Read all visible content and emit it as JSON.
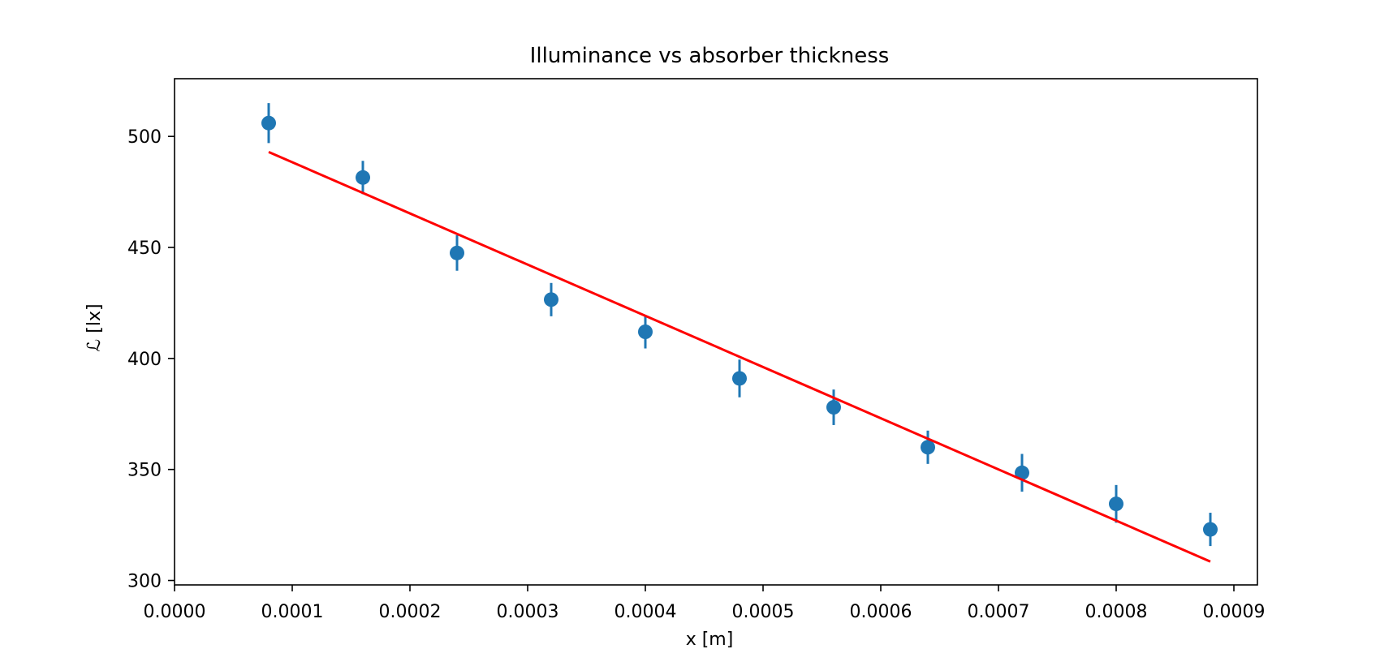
{
  "chart_data": {
    "type": "scatter",
    "title": "Illuminance vs absorber thickness",
    "xlabel": "x [m]",
    "ylabel": "ℒ [lx]",
    "xlim": [
      0.0,
      0.00092
    ],
    "ylim": [
      298,
      526
    ],
    "xticks": [
      0.0,
      0.0001,
      0.0002,
      0.0003,
      0.0004,
      0.0005,
      0.0006,
      0.0007,
      0.0008,
      0.0009
    ],
    "xtick_labels": [
      "0.0000",
      "0.0001",
      "0.0002",
      "0.0003",
      "0.0004",
      "0.0005",
      "0.0006",
      "0.0007",
      "0.0008",
      "0.0009"
    ],
    "yticks": [
      300,
      350,
      400,
      450,
      500
    ],
    "ytick_labels": [
      "300",
      "350",
      "400",
      "450",
      "500"
    ],
    "grid": false,
    "series": [
      {
        "kind": "errorbar",
        "color": "#1f77b4",
        "x": [
          8e-05,
          0.00016,
          0.00024,
          0.00032,
          0.0004,
          0.00048,
          0.00056,
          0.00064,
          0.00072,
          0.0008,
          0.00088
        ],
        "y": [
          506,
          481.5,
          447.5,
          426.5,
          412,
          391,
          378,
          360,
          348.5,
          334.5,
          323
        ],
        "yerr": [
          9,
          7.5,
          8,
          7.5,
          7.5,
          8.5,
          8,
          7.5,
          8.5,
          8.5,
          7.5
        ]
      },
      {
        "kind": "line",
        "color": "#ff0000",
        "x": [
          8e-05,
          0.00088
        ],
        "y": [
          493,
          308.5
        ]
      }
    ]
  }
}
